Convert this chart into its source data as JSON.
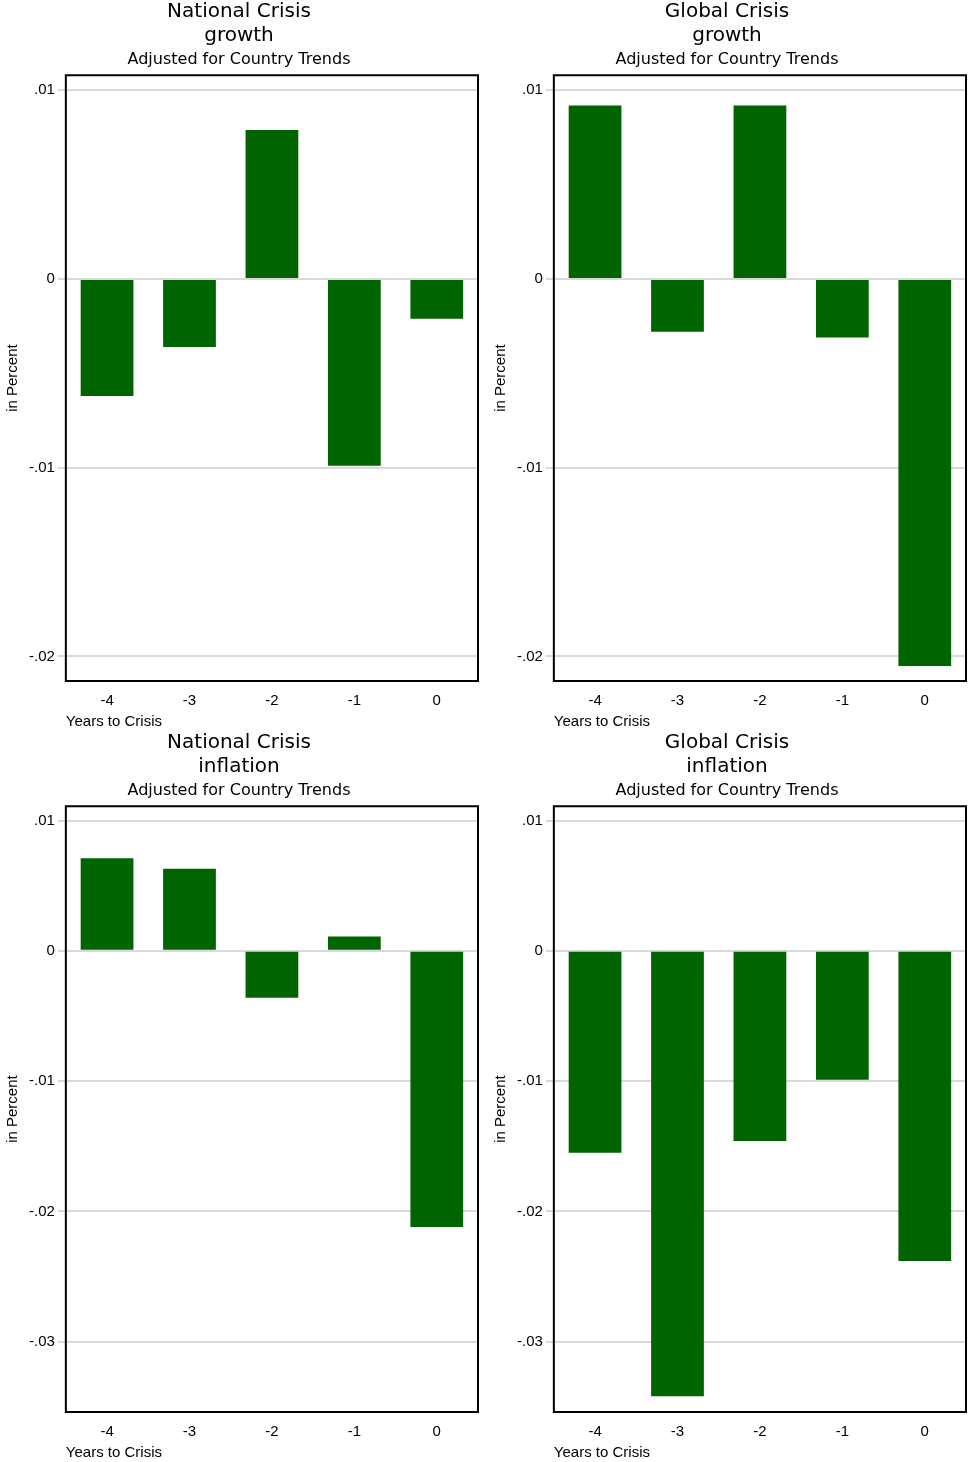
{
  "chart_data": [
    {
      "type": "bar",
      "title": "National Crisis\ngrowth",
      "subtitle": "Adjusted for Country Trends",
      "xlabel": "Years to Crisis",
      "ylabel": "in Percent",
      "categories": [
        "-4",
        "-3",
        "-2",
        "-1",
        "0"
      ],
      "color": "#006400",
      "values": [
        -0.0062,
        -0.0036,
        0.0079,
        -0.0099,
        -0.0021
      ],
      "ylim": [
        -0.0213,
        0.0108
      ],
      "yticks": [
        {
          "value": -0.02,
          "label": "-.02"
        },
        {
          "value": -0.01,
          "label": "-.01"
        },
        {
          "value": 0,
          "label": "0"
        },
        {
          "value": 0.01,
          "label": ".01"
        }
      ],
      "grid": "y"
    },
    {
      "type": "bar",
      "title": "Global Crisis\ngrowth",
      "subtitle": "Adjusted for Country Trends",
      "xlabel": "Years to Crisis",
      "ylabel": "in Percent",
      "categories": [
        "-4",
        "-3",
        "-2",
        "-1",
        "0"
      ],
      "color": "#006400",
      "values": [
        0.0092,
        -0.0028,
        0.0092,
        -0.0031,
        -0.0205
      ],
      "ylim": [
        -0.0213,
        0.0108
      ],
      "yticks": [
        {
          "value": -0.02,
          "label": "-.02"
        },
        {
          "value": -0.01,
          "label": "-.01"
        },
        {
          "value": 0,
          "label": "0"
        },
        {
          "value": 0.01,
          "label": ".01"
        }
      ],
      "grid": "y"
    },
    {
      "type": "bar",
      "title": "National Crisis\ninflation",
      "subtitle": "Adjusted for Country Trends",
      "xlabel": "Years to Crisis",
      "ylabel": "in Percent",
      "categories": [
        "-4",
        "-3",
        "-2",
        "-1",
        "0"
      ],
      "color": "#006400",
      "values": [
        0.0071,
        0.0063,
        -0.0036,
        0.0011,
        -0.0212
      ],
      "ylim": [
        -0.0354,
        0.0111
      ],
      "yticks": [
        {
          "value": -0.03,
          "label": "-.03"
        },
        {
          "value": -0.02,
          "label": "-.02"
        },
        {
          "value": -0.01,
          "label": "-.01"
        },
        {
          "value": 0,
          "label": "0"
        },
        {
          "value": 0.01,
          "label": ".01"
        }
      ],
      "grid": "y"
    },
    {
      "type": "bar",
      "title": "Global Crisis\ninflation",
      "subtitle": "Adjusted for Country Trends",
      "xlabel": "Years to Crisis",
      "ylabel": "in Percent",
      "categories": [
        "-4",
        "-3",
        "-2",
        "-1",
        "0"
      ],
      "color": "#006400",
      "values": [
        -0.0155,
        -0.0342,
        -0.0146,
        -0.0099,
        -0.0238
      ],
      "ylim": [
        -0.0354,
        0.0111
      ],
      "yticks": [
        {
          "value": -0.03,
          "label": "-.03"
        },
        {
          "value": -0.02,
          "label": "-.02"
        },
        {
          "value": -0.01,
          "label": "-.01"
        },
        {
          "value": 0,
          "label": "0"
        },
        {
          "value": 0.01,
          "label": ".01"
        }
      ],
      "grid": "y"
    }
  ]
}
